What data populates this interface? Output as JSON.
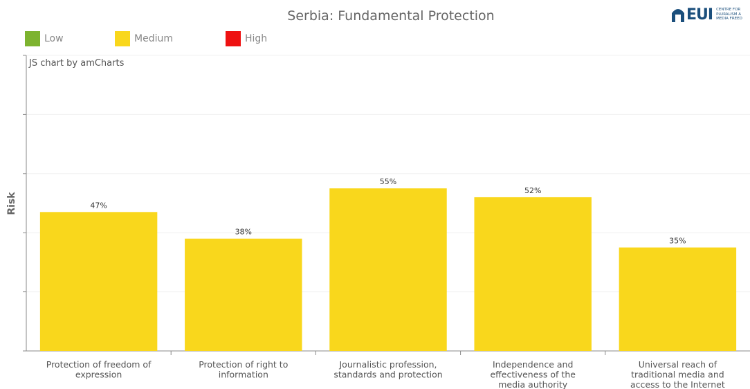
{
  "chart_data": {
    "type": "bar",
    "title": "Serbia: Fundamental Protection",
    "ylabel": "Risk",
    "xlabel": "",
    "ylim": [
      0,
      100
    ],
    "categories": [
      [
        "Protection of freedom of",
        "expression"
      ],
      [
        "Protection of right to",
        "information"
      ],
      [
        "Journalistic profession,",
        "standards and protection"
      ],
      [
        "Independence and",
        "effectiveness of the",
        "media authority"
      ],
      [
        "Universal reach of",
        "traditional media and",
        "access to the Internet"
      ]
    ],
    "values": [
      47,
      38,
      55,
      52,
      35
    ],
    "value_labels": [
      "47%",
      "38%",
      "55%",
      "52%",
      "35%"
    ],
    "bar_color": "#f9d71c",
    "gridlines": true,
    "legend": {
      "placement": "top-left",
      "items": [
        {
          "label": "Low",
          "color": "#7db32f"
        },
        {
          "label": "Medium",
          "color": "#f9d71c"
        },
        {
          "label": "High",
          "color": "#ee1111"
        }
      ]
    },
    "credit": "JS chart by amCharts"
  },
  "logo": {
    "text": "EUI",
    "sub": [
      "CENTRE FOR",
      "PLURALISM A",
      "MEDIA FREED"
    ]
  }
}
